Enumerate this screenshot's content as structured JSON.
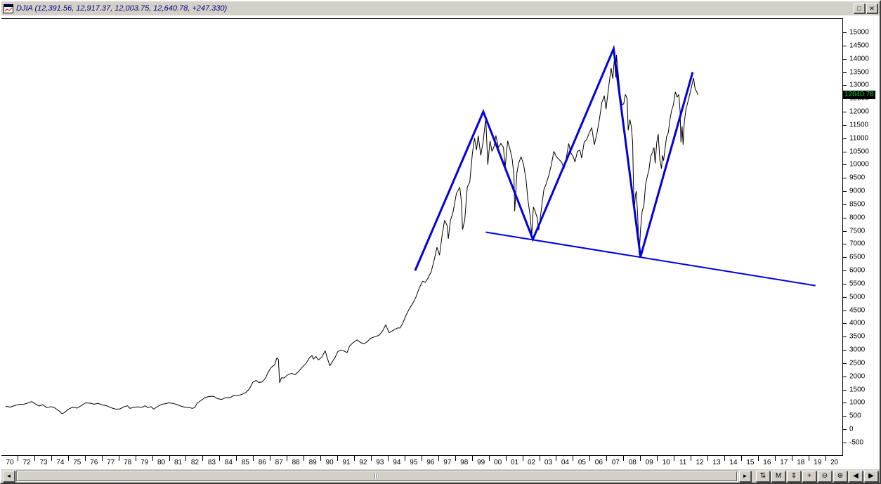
{
  "window": {
    "title": "DJIA (12,391.56, 12,917.37, 12,003.75, 12,640.78, +247.330)",
    "controls": {
      "maximize": "□",
      "close": "✕"
    }
  },
  "colors": {
    "price_line": "#000000",
    "annotation_blue": "#0000e0",
    "last_price_bg": "#000000",
    "last_price_fg": "#00cc33",
    "title_text": "#000080"
  },
  "scrollbar": {
    "left_arrow": "◄",
    "right_arrow": "►"
  },
  "toolbar": {
    "buttons": [
      {
        "name": "refresh-button",
        "glyph": "⇅"
      },
      {
        "name": "mode-button",
        "glyph": "M"
      },
      {
        "name": "scale-button",
        "glyph": "⇕"
      },
      {
        "name": "crosshair-button",
        "glyph": "+"
      },
      {
        "name": "zoom-out-button",
        "glyph": "⊖"
      },
      {
        "name": "zoom-in-button",
        "glyph": "⊕"
      },
      {
        "name": "page-left-button",
        "glyph": "◀"
      },
      {
        "name": "page-right-button",
        "glyph": "▶"
      }
    ]
  },
  "chart_data": {
    "type": "line",
    "title": "DJIA",
    "ohlc_readout": {
      "open": "12,391.56",
      "high": "12,917.37",
      "low": "12,003.75",
      "close": "12,640.78",
      "change": "+247.330"
    },
    "last_price_label": "12640.78",
    "last_price_value": 12640.78,
    "x_axis": {
      "range": [
        1971.25,
        2021.25
      ],
      "labels": [
        "70",
        "72",
        "73",
        "74",
        "75",
        "76",
        "77",
        "78",
        "79",
        "80",
        "81",
        "82",
        "83",
        "84",
        "85",
        "86",
        "87",
        "88",
        "89",
        "90",
        "91",
        "92",
        "93",
        "94",
        "95",
        "96",
        "97",
        "98",
        "99",
        "00",
        "01",
        "02",
        "03",
        "04",
        "05",
        "06",
        "07",
        "08",
        "09",
        "10",
        "11",
        "12",
        "13",
        "14",
        "15",
        "16",
        "17",
        "18",
        "19",
        "20"
      ]
    },
    "y_axis": {
      "min": -500,
      "max": 15000,
      "step": 500,
      "labels": [
        "15000",
        "14500",
        "14000",
        "13500",
        "13000",
        "12500",
        "12000",
        "11500",
        "11000",
        "10500",
        "10000",
        "9500",
        "9000",
        "8500",
        "8000",
        "7500",
        "7000",
        "6500",
        "6000",
        "5500",
        "5000",
        "4500",
        "4000",
        "3500",
        "3000",
        "2500",
        "2000",
        "1500",
        "1000",
        "500",
        "0",
        "-500"
      ]
    },
    "grid": "off",
    "series": {
      "name": "DJIA close",
      "color": "#000000",
      "points": [
        [
          1971.5,
          870
        ],
        [
          1971.8,
          840
        ],
        [
          1972.0,
          890
        ],
        [
          1972.3,
          940
        ],
        [
          1972.6,
          950
        ],
        [
          1972.9,
          1010
        ],
        [
          1973.05,
          1050
        ],
        [
          1973.3,
          950
        ],
        [
          1973.5,
          880
        ],
        [
          1973.7,
          930
        ],
        [
          1973.95,
          820
        ],
        [
          1974.2,
          860
        ],
        [
          1974.45,
          800
        ],
        [
          1974.7,
          680
        ],
        [
          1974.85,
          590
        ],
        [
          1975.0,
          630
        ],
        [
          1975.2,
          750
        ],
        [
          1975.5,
          840
        ],
        [
          1975.75,
          800
        ],
        [
          1976.0,
          900
        ],
        [
          1976.25,
          1000
        ],
        [
          1976.5,
          990
        ],
        [
          1976.75,
          950
        ],
        [
          1977.0,
          980
        ],
        [
          1977.25,
          920
        ],
        [
          1977.5,
          890
        ],
        [
          1977.8,
          810
        ],
        [
          1978.05,
          760
        ],
        [
          1978.3,
          770
        ],
        [
          1978.55,
          860
        ],
        [
          1978.75,
          890
        ],
        [
          1978.9,
          790
        ],
        [
          1979.1,
          830
        ],
        [
          1979.35,
          850
        ],
        [
          1979.6,
          830
        ],
        [
          1979.8,
          890
        ],
        [
          1979.95,
          820
        ],
        [
          1980.15,
          860
        ],
        [
          1980.3,
          760
        ],
        [
          1980.55,
          870
        ],
        [
          1980.8,
          950
        ],
        [
          1980.95,
          960
        ],
        [
          1981.2,
          1000
        ],
        [
          1981.45,
          980
        ],
        [
          1981.7,
          930
        ],
        [
          1981.95,
          870
        ],
        [
          1982.2,
          830
        ],
        [
          1982.45,
          820
        ],
        [
          1982.6,
          790
        ],
        [
          1982.75,
          830
        ],
        [
          1982.9,
          1000
        ],
        [
          1983.1,
          1080
        ],
        [
          1983.35,
          1200
        ],
        [
          1983.6,
          1240
        ],
        [
          1983.85,
          1250
        ],
        [
          1984.1,
          1160
        ],
        [
          1984.35,
          1130
        ],
        [
          1984.6,
          1200
        ],
        [
          1984.85,
          1190
        ],
        [
          1985.05,
          1280
        ],
        [
          1985.3,
          1270
        ],
        [
          1985.55,
          1320
        ],
        [
          1985.8,
          1400
        ],
        [
          1986.0,
          1530
        ],
        [
          1986.2,
          1780
        ],
        [
          1986.4,
          1850
        ],
        [
          1986.55,
          1770
        ],
        [
          1986.75,
          1790
        ],
        [
          1986.95,
          1930
        ],
        [
          1987.1,
          2150
        ],
        [
          1987.3,
          2340
        ],
        [
          1987.5,
          2440
        ],
        [
          1987.63,
          2700
        ],
        [
          1987.72,
          2640
        ],
        [
          1987.79,
          1760
        ],
        [
          1987.9,
          1950
        ],
        [
          1988.05,
          1940
        ],
        [
          1988.25,
          2050
        ],
        [
          1988.5,
          2120
        ],
        [
          1988.7,
          2060
        ],
        [
          1988.9,
          2170
        ],
        [
          1989.1,
          2320
        ],
        [
          1989.35,
          2480
        ],
        [
          1989.55,
          2690
        ],
        [
          1989.72,
          2790
        ],
        [
          1989.8,
          2650
        ],
        [
          1989.95,
          2750
        ],
        [
          1990.1,
          2620
        ],
        [
          1990.3,
          2730
        ],
        [
          1990.5,
          2970
        ],
        [
          1990.65,
          2650
        ],
        [
          1990.78,
          2400
        ],
        [
          1990.95,
          2580
        ],
        [
          1991.1,
          2730
        ],
        [
          1991.25,
          2940
        ],
        [
          1991.45,
          3000
        ],
        [
          1991.6,
          2960
        ],
        [
          1991.8,
          2900
        ],
        [
          1991.95,
          3150
        ],
        [
          1992.15,
          3270
        ],
        [
          1992.4,
          3380
        ],
        [
          1992.6,
          3280
        ],
        [
          1992.8,
          3230
        ],
        [
          1993.0,
          3310
        ],
        [
          1993.2,
          3440
        ],
        [
          1993.45,
          3500
        ],
        [
          1993.7,
          3550
        ],
        [
          1993.95,
          3750
        ],
        [
          1994.1,
          3950
        ],
        [
          1994.3,
          3650
        ],
        [
          1994.55,
          3740
        ],
        [
          1994.8,
          3830
        ],
        [
          1994.95,
          3830
        ],
        [
          1995.1,
          3990
        ],
        [
          1995.3,
          4300
        ],
        [
          1995.5,
          4550
        ],
        [
          1995.7,
          4750
        ],
        [
          1995.9,
          5000
        ],
        [
          1996.1,
          5350
        ],
        [
          1996.3,
          5600
        ],
        [
          1996.45,
          5550
        ],
        [
          1996.6,
          5700
        ],
        [
          1996.8,
          5950
        ],
        [
          1997.0,
          6450
        ],
        [
          1997.15,
          6880
        ],
        [
          1997.3,
          6580
        ],
        [
          1997.45,
          7300
        ],
        [
          1997.6,
          7900
        ],
        [
          1997.75,
          7700
        ],
        [
          1997.82,
          7200
        ],
        [
          1997.95,
          7900
        ],
        [
          1998.1,
          8200
        ],
        [
          1998.3,
          8900
        ],
        [
          1998.5,
          9150
        ],
        [
          1998.6,
          8600
        ],
        [
          1998.67,
          7550
        ],
        [
          1998.8,
          7900
        ],
        [
          1998.95,
          9150
        ],
        [
          1999.1,
          9350
        ],
        [
          1999.25,
          10400
        ],
        [
          1999.38,
          11000
        ],
        [
          1999.5,
          10550
        ],
        [
          1999.6,
          11100
        ],
        [
          1999.75,
          10350
        ],
        [
          1999.9,
          10900
        ],
        [
          2000.0,
          11500
        ],
        [
          2000.05,
          11720
        ],
        [
          2000.17,
          10000
        ],
        [
          2000.3,
          10900
        ],
        [
          2000.42,
          10500
        ],
        [
          2000.55,
          10700
        ],
        [
          2000.65,
          11100
        ],
        [
          2000.8,
          10650
        ],
        [
          2000.95,
          10800
        ],
        [
          2001.1,
          10650
        ],
        [
          2001.2,
          9900
        ],
        [
          2001.35,
          10900
        ],
        [
          2001.5,
          10550
        ],
        [
          2001.62,
          10200
        ],
        [
          2001.72,
          9600
        ],
        [
          2001.77,
          8240
        ],
        [
          2001.9,
          9700
        ],
        [
          2002.0,
          10050
        ],
        [
          2002.15,
          10300
        ],
        [
          2002.3,
          10000
        ],
        [
          2002.45,
          9400
        ],
        [
          2002.55,
          8700
        ],
        [
          2002.7,
          8000
        ],
        [
          2002.78,
          7300
        ],
        [
          2002.88,
          8400
        ],
        [
          2002.95,
          8300
        ],
        [
          2003.1,
          8000
        ],
        [
          2003.2,
          7520
        ],
        [
          2003.35,
          8300
        ],
        [
          2003.5,
          9050
        ],
        [
          2003.65,
          9300
        ],
        [
          2003.8,
          9600
        ],
        [
          2003.95,
          10000
        ],
        [
          2004.1,
          10500
        ],
        [
          2004.25,
          10300
        ],
        [
          2004.4,
          10200
        ],
        [
          2004.55,
          10100
        ],
        [
          2004.7,
          9850
        ],
        [
          2004.85,
          10300
        ],
        [
          2004.98,
          10800
        ],
        [
          2005.1,
          10450
        ],
        [
          2005.25,
          10300
        ],
        [
          2005.35,
          10100
        ],
        [
          2005.5,
          10500
        ],
        [
          2005.65,
          10550
        ],
        [
          2005.75,
          10250
        ],
        [
          2005.9,
          10850
        ],
        [
          2006.05,
          10950
        ],
        [
          2006.2,
          11200
        ],
        [
          2006.35,
          11400
        ],
        [
          2006.5,
          10750
        ],
        [
          2006.65,
          11150
        ],
        [
          2006.8,
          11700
        ],
        [
          2006.95,
          12350
        ],
        [
          2007.1,
          12600
        ],
        [
          2007.2,
          12100
        ],
        [
          2007.35,
          12900
        ],
        [
          2007.5,
          13650
        ],
        [
          2007.6,
          13250
        ],
        [
          2007.7,
          14000
        ],
        [
          2007.78,
          13300
        ],
        [
          2007.82,
          14150
        ],
        [
          2007.95,
          13250
        ],
        [
          2008.05,
          12600
        ],
        [
          2008.15,
          12250
        ],
        [
          2008.25,
          12300
        ],
        [
          2008.35,
          12650
        ],
        [
          2008.45,
          12500
        ],
        [
          2008.52,
          11300
        ],
        [
          2008.62,
          11700
        ],
        [
          2008.7,
          11450
        ],
        [
          2008.78,
          10850
        ],
        [
          2008.83,
          9200
        ],
        [
          2008.88,
          8350
        ],
        [
          2008.95,
          8850
        ],
        [
          2009.0,
          9000
        ],
        [
          2009.08,
          8050
        ],
        [
          2009.17,
          6600
        ],
        [
          2009.25,
          7550
        ],
        [
          2009.35,
          8250
        ],
        [
          2009.45,
          8450
        ],
        [
          2009.55,
          9250
        ],
        [
          2009.65,
          9550
        ],
        [
          2009.75,
          9800
        ],
        [
          2009.85,
          10300
        ],
        [
          2009.95,
          10450
        ],
        [
          2010.05,
          10650
        ],
        [
          2010.12,
          10050
        ],
        [
          2010.22,
          10850
        ],
        [
          2010.3,
          11150
        ],
        [
          2010.4,
          10150
        ],
        [
          2010.5,
          9850
        ],
        [
          2010.55,
          10350
        ],
        [
          2010.62,
          10150
        ],
        [
          2010.7,
          10550
        ],
        [
          2010.8,
          11050
        ],
        [
          2010.9,
          11200
        ],
        [
          2011.0,
          11700
        ],
        [
          2011.1,
          12050
        ],
        [
          2011.2,
          12250
        ],
        [
          2011.32,
          12750
        ],
        [
          2011.42,
          12550
        ],
        [
          2011.52,
          12650
        ],
        [
          2011.6,
          12050
        ],
        [
          2011.65,
          10850
        ],
        [
          2011.72,
          11450
        ],
        [
          2011.78,
          10750
        ],
        [
          2011.85,
          11600
        ],
        [
          2011.95,
          12100
        ],
        [
          2012.1,
          12450
        ],
        [
          2012.25,
          12850
        ],
        [
          2012.4,
          13280
        ],
        [
          2012.5,
          12850
        ],
        [
          2012.6,
          12750
        ],
        [
          2012.65,
          12640.78
        ]
      ]
    },
    "annotations": [
      {
        "name": "zigzag-trendlines",
        "color": "#0000e0",
        "width": 3,
        "points": [
          [
            1995.85,
            6000
          ],
          [
            1999.9,
            12000
          ],
          [
            2002.85,
            7180
          ],
          [
            2007.65,
            14380
          ],
          [
            2009.25,
            6520
          ],
          [
            2012.35,
            13490
          ]
        ]
      },
      {
        "name": "declining-support-trendline",
        "color": "#0000e0",
        "width": 2,
        "points": [
          [
            2000.05,
            7450
          ],
          [
            2019.65,
            5430
          ]
        ]
      }
    ],
    "legend": "none"
  }
}
